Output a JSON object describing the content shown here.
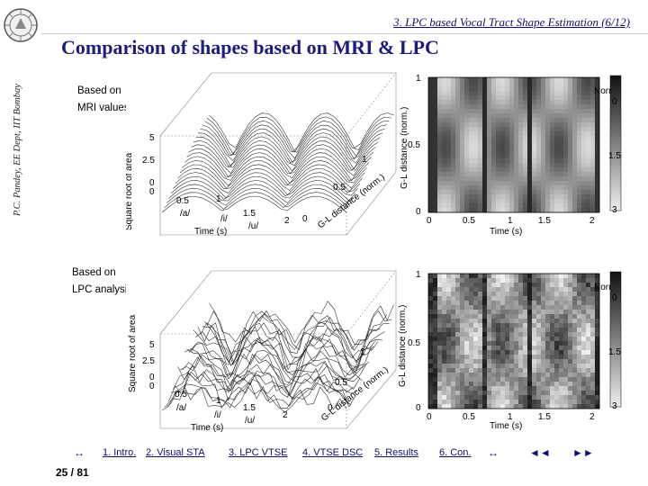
{
  "sidebar": {
    "author_line": "P.C. Pandey, EE Dept, IIT Bombay"
  },
  "header": {
    "section_title": "3. LPC based Vocal Tract Shape Estimation (6/12)",
    "slide_title": "Comparison of shapes based on MRI & LPC"
  },
  "panels": {
    "top": {
      "label_line1": "Based on",
      "label_line2": "MRI values"
    },
    "bottom": {
      "label_line1": "Based on",
      "label_line2": "LPC analysis"
    }
  },
  "figure_text": {
    "z_label": "Square root of area",
    "x_label": "Time (s)",
    "y_label": "G-L distance (norm.)",
    "vowels": [
      "/a/",
      "/i/",
      "/u/"
    ],
    "z_ticks": [
      "5",
      "2.5",
      "0"
    ],
    "x_ticks": [
      "0",
      "0.5",
      "1",
      "1.5",
      "2"
    ],
    "y_ticks_3d": [
      "0",
      "0.5",
      "1"
    ],
    "img_y_label": "G-L distance (norm.)",
    "img_x_label": "Time (s)",
    "img_y_ticks": [
      "1",
      "0.5",
      "0"
    ],
    "img_x_ticks": [
      "0",
      "0.5",
      "1",
      "1.5",
      "2"
    ],
    "colorbar_title": "Norm.",
    "colorbar_ticks": [
      "0",
      "1.5",
      "3"
    ]
  },
  "nav": {
    "back_glyph": "↔",
    "items": [
      "1. Intro.",
      "2. Visual STA",
      "3. LPC VTSE",
      "4. VTSE DSC",
      "5. Results",
      "6. Con."
    ],
    "forward_glyph": "↔",
    "prev_glyph": "◄◄",
    "next_glyph": "►►"
  },
  "footer": {
    "page_number": "25 / 81"
  }
}
